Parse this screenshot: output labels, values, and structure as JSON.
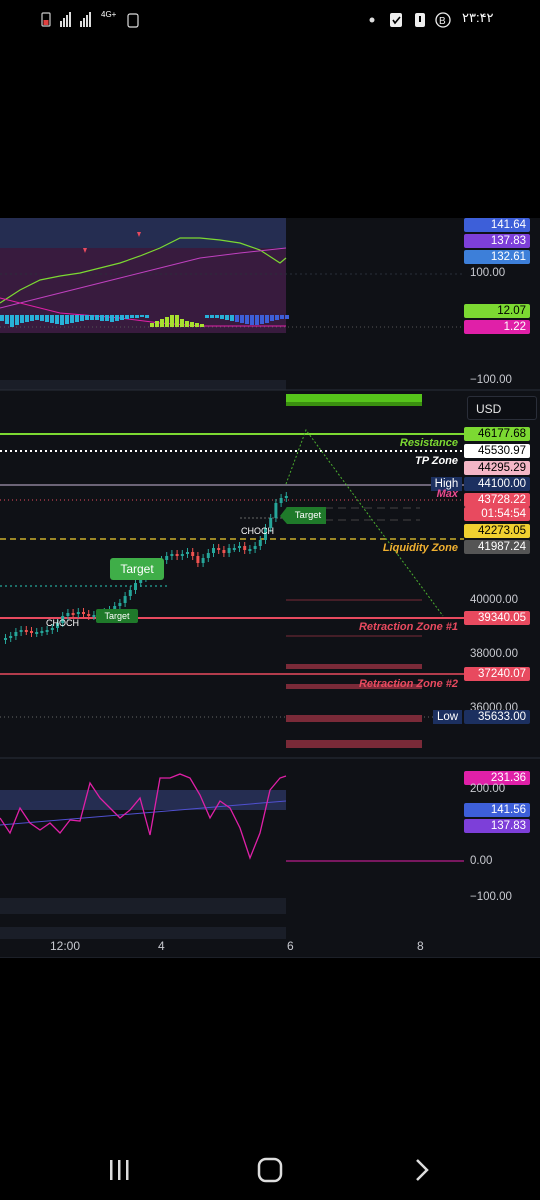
{
  "status_bar": {
    "time": "۲۳:۴۲",
    "network_label": "4G+"
  },
  "top_indicator": {
    "price_tags": [
      "141.64",
      "137.83",
      "132.61",
      "12.07",
      "1.22"
    ],
    "axis_labels": [
      "100.00",
      "−100.00"
    ]
  },
  "main_chart": {
    "currency": "USD",
    "price_tags": [
      "46177.68",
      "45530.97",
      "44295.29",
      "44100.00",
      "43728.22",
      "01:54:54",
      "42273.05",
      "41987.24",
      "39340.05",
      "37240.07",
      "35633.00"
    ],
    "axis_labels": [
      "40000.00",
      "38000.00",
      "36000.00"
    ],
    "zone_labels": {
      "resistance": "Resistance",
      "tp_zone": "TP Zone",
      "high": "High",
      "max": "Max",
      "liquidity_zone": "Liquidity Zone",
      "retracement1": "Retraction Zone #1",
      "retracement2": "Retraction Zone #2",
      "low": "Low"
    },
    "markers": {
      "target_big": "Target",
      "target_small1": "Target",
      "target_small2": "Target",
      "choch1": "CHOCH",
      "choch2": "CHOCH"
    }
  },
  "bottom_indicator": {
    "price_tags": [
      "231.36",
      "141.56",
      "137.83"
    ],
    "axis_labels": [
      "200.00",
      "0.00",
      "−100.00"
    ]
  },
  "time_axis": [
    "12:00",
    "4",
    "6",
    "8"
  ],
  "colors": {
    "green": "#7cd932",
    "magenta": "#e020a8",
    "blue": "#3d5fd9",
    "red": "#e84a5f",
    "yellow": "#f0d030"
  }
}
